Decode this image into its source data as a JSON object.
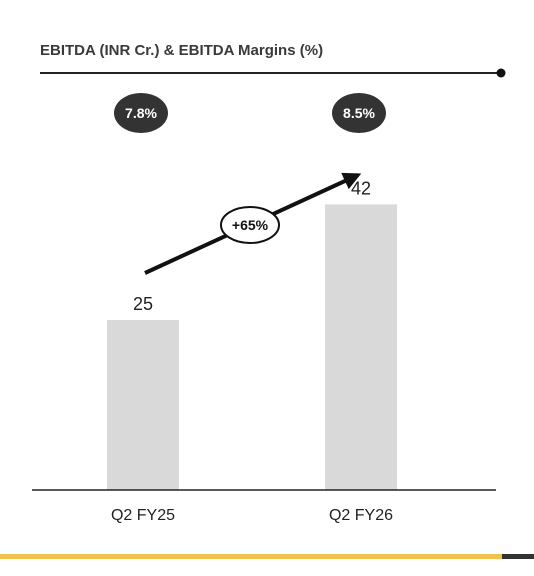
{
  "chart_data": {
    "type": "bar",
    "title": "EBITDA (INR Cr.) & EBITDA Margins (%)",
    "categories": [
      "Q2 FY25",
      "Q2 FY26"
    ],
    "values": [
      25,
      42
    ],
    "value_labels": [
      "25",
      "42"
    ],
    "margins": [
      "7.8%",
      "8.5%"
    ],
    "growth_label": "+65%",
    "ylim": [
      0,
      50
    ],
    "grid": false,
    "xlabel": "",
    "ylabel": ""
  },
  "colors": {
    "bar": "#d9d9d9",
    "badge": "#333333",
    "axis": "#222222",
    "footer_gold": "#f0c24b",
    "footer_dark": "#333333",
    "title": "#3a3a3a"
  }
}
